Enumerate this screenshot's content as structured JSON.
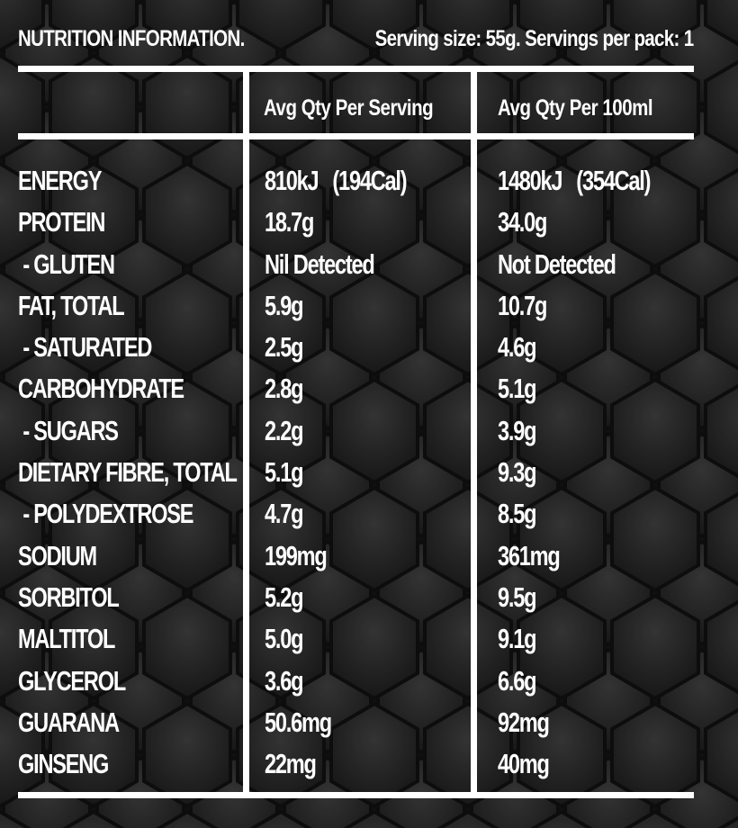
{
  "header": {
    "title": "NUTRITION INFORMATION.",
    "serving_info": "Serving size: 55g.  Servings per pack: 1"
  },
  "columns": {
    "per_serving": "Avg Qty Per Serving",
    "per_100": "Avg Qty Per 100ml"
  },
  "rows": [
    {
      "name": "ENERGY",
      "per_serving": "810kJ   (194Cal)",
      "per_100": "1480kJ   (354Cal)"
    },
    {
      "name": "PROTEIN",
      "per_serving": "18.7g",
      "per_100": "34.0g"
    },
    {
      "name": " - GLUTEN",
      "per_serving": "Nil Detected",
      "per_100": "Not Detected"
    },
    {
      "name": "FAT, TOTAL",
      "per_serving": "5.9g",
      "per_100": "10.7g"
    },
    {
      "name": " - SATURATED",
      "per_serving": "2.5g",
      "per_100": "4.6g"
    },
    {
      "name": "CARBOHYDRATE",
      "per_serving": "2.8g",
      "per_100": "5.1g"
    },
    {
      "name": " - SUGARS",
      "per_serving": "2.2g",
      "per_100": "3.9g"
    },
    {
      "name": "DIETARY FIBRE, TOTAL",
      "per_serving": "5.1g",
      "per_100": "9.3g"
    },
    {
      "name": " - POLYDEXTROSE",
      "per_serving": "4.7g",
      "per_100": "8.5g"
    },
    {
      "name": "SODIUM",
      "per_serving": "199mg",
      "per_100": "361mg"
    },
    {
      "name": "SORBITOL",
      "per_serving": "5.2g",
      "per_100": "9.5g"
    },
    {
      "name": "MALTITOL",
      "per_serving": "5.0g",
      "per_100": "9.1g"
    },
    {
      "name": "GLYCEROL",
      "per_serving": "3.6g",
      "per_100": "6.6g"
    },
    {
      "name": "GUARANA",
      "per_serving": "50.6mg",
      "per_100": "92mg"
    },
    {
      "name": "GINSENG",
      "per_serving": "22mg",
      "per_100": "40mg"
    }
  ],
  "colors": {
    "background": "#1c1c1c",
    "hex_pattern": "#3a3a3a",
    "text": "#ffffff"
  }
}
